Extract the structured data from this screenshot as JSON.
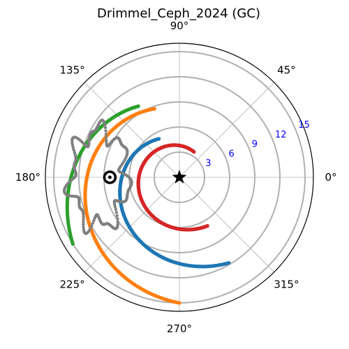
{
  "chart_data": {
    "type": "polar_scatter",
    "title": "Drimmel_Ceph_2024 (GC)",
    "angle_unit": "deg",
    "angle_ticks": [
      "0°",
      "45°",
      "90°",
      "135°",
      "180°",
      "225°",
      "270°",
      "315°"
    ],
    "angle_tick_values": [
      0,
      45,
      90,
      135,
      180,
      225,
      270,
      315
    ],
    "radial_ticks": [
      "3",
      "6",
      "9",
      "12",
      "15"
    ],
    "radial_tick_values": [
      3,
      6,
      9,
      12,
      15
    ],
    "rlim": [
      0,
      16
    ],
    "grid": true,
    "colors": {
      "spiral_1": "#d62728",
      "spiral_2": "#1f77b4",
      "spiral_3": "#ff7f0e",
      "spiral_4": "#2ca02c",
      "contour": "#808080",
      "center_marker": "#000000",
      "sun_marker": "#000000"
    },
    "series": [
      {
        "key": "spiral_1",
        "style": "points",
        "r_start": 3.5,
        "r_end": 6.7,
        "theta_start": 60,
        "theta_end": 300
      },
      {
        "key": "spiral_2",
        "style": "points",
        "r_start": 5.2,
        "r_end": 11.8,
        "theta_start": 118,
        "theta_end": 300
      },
      {
        "key": "spiral_3",
        "style": "points",
        "r_start": 8.7,
        "r_end": 15.0,
        "theta_start": 110,
        "theta_end": 270
      },
      {
        "key": "spiral_4",
        "style": "points",
        "r_start": 9.8,
        "r_end": 15.0,
        "theta_start": 120,
        "theta_end": 212
      }
    ],
    "markers": [
      {
        "key": "center_marker",
        "shape": "star",
        "r": 0,
        "theta": 0
      },
      {
        "key": "sun_marker",
        "shape": "circle-dot",
        "r": 8.3,
        "theta": 180
      }
    ]
  }
}
